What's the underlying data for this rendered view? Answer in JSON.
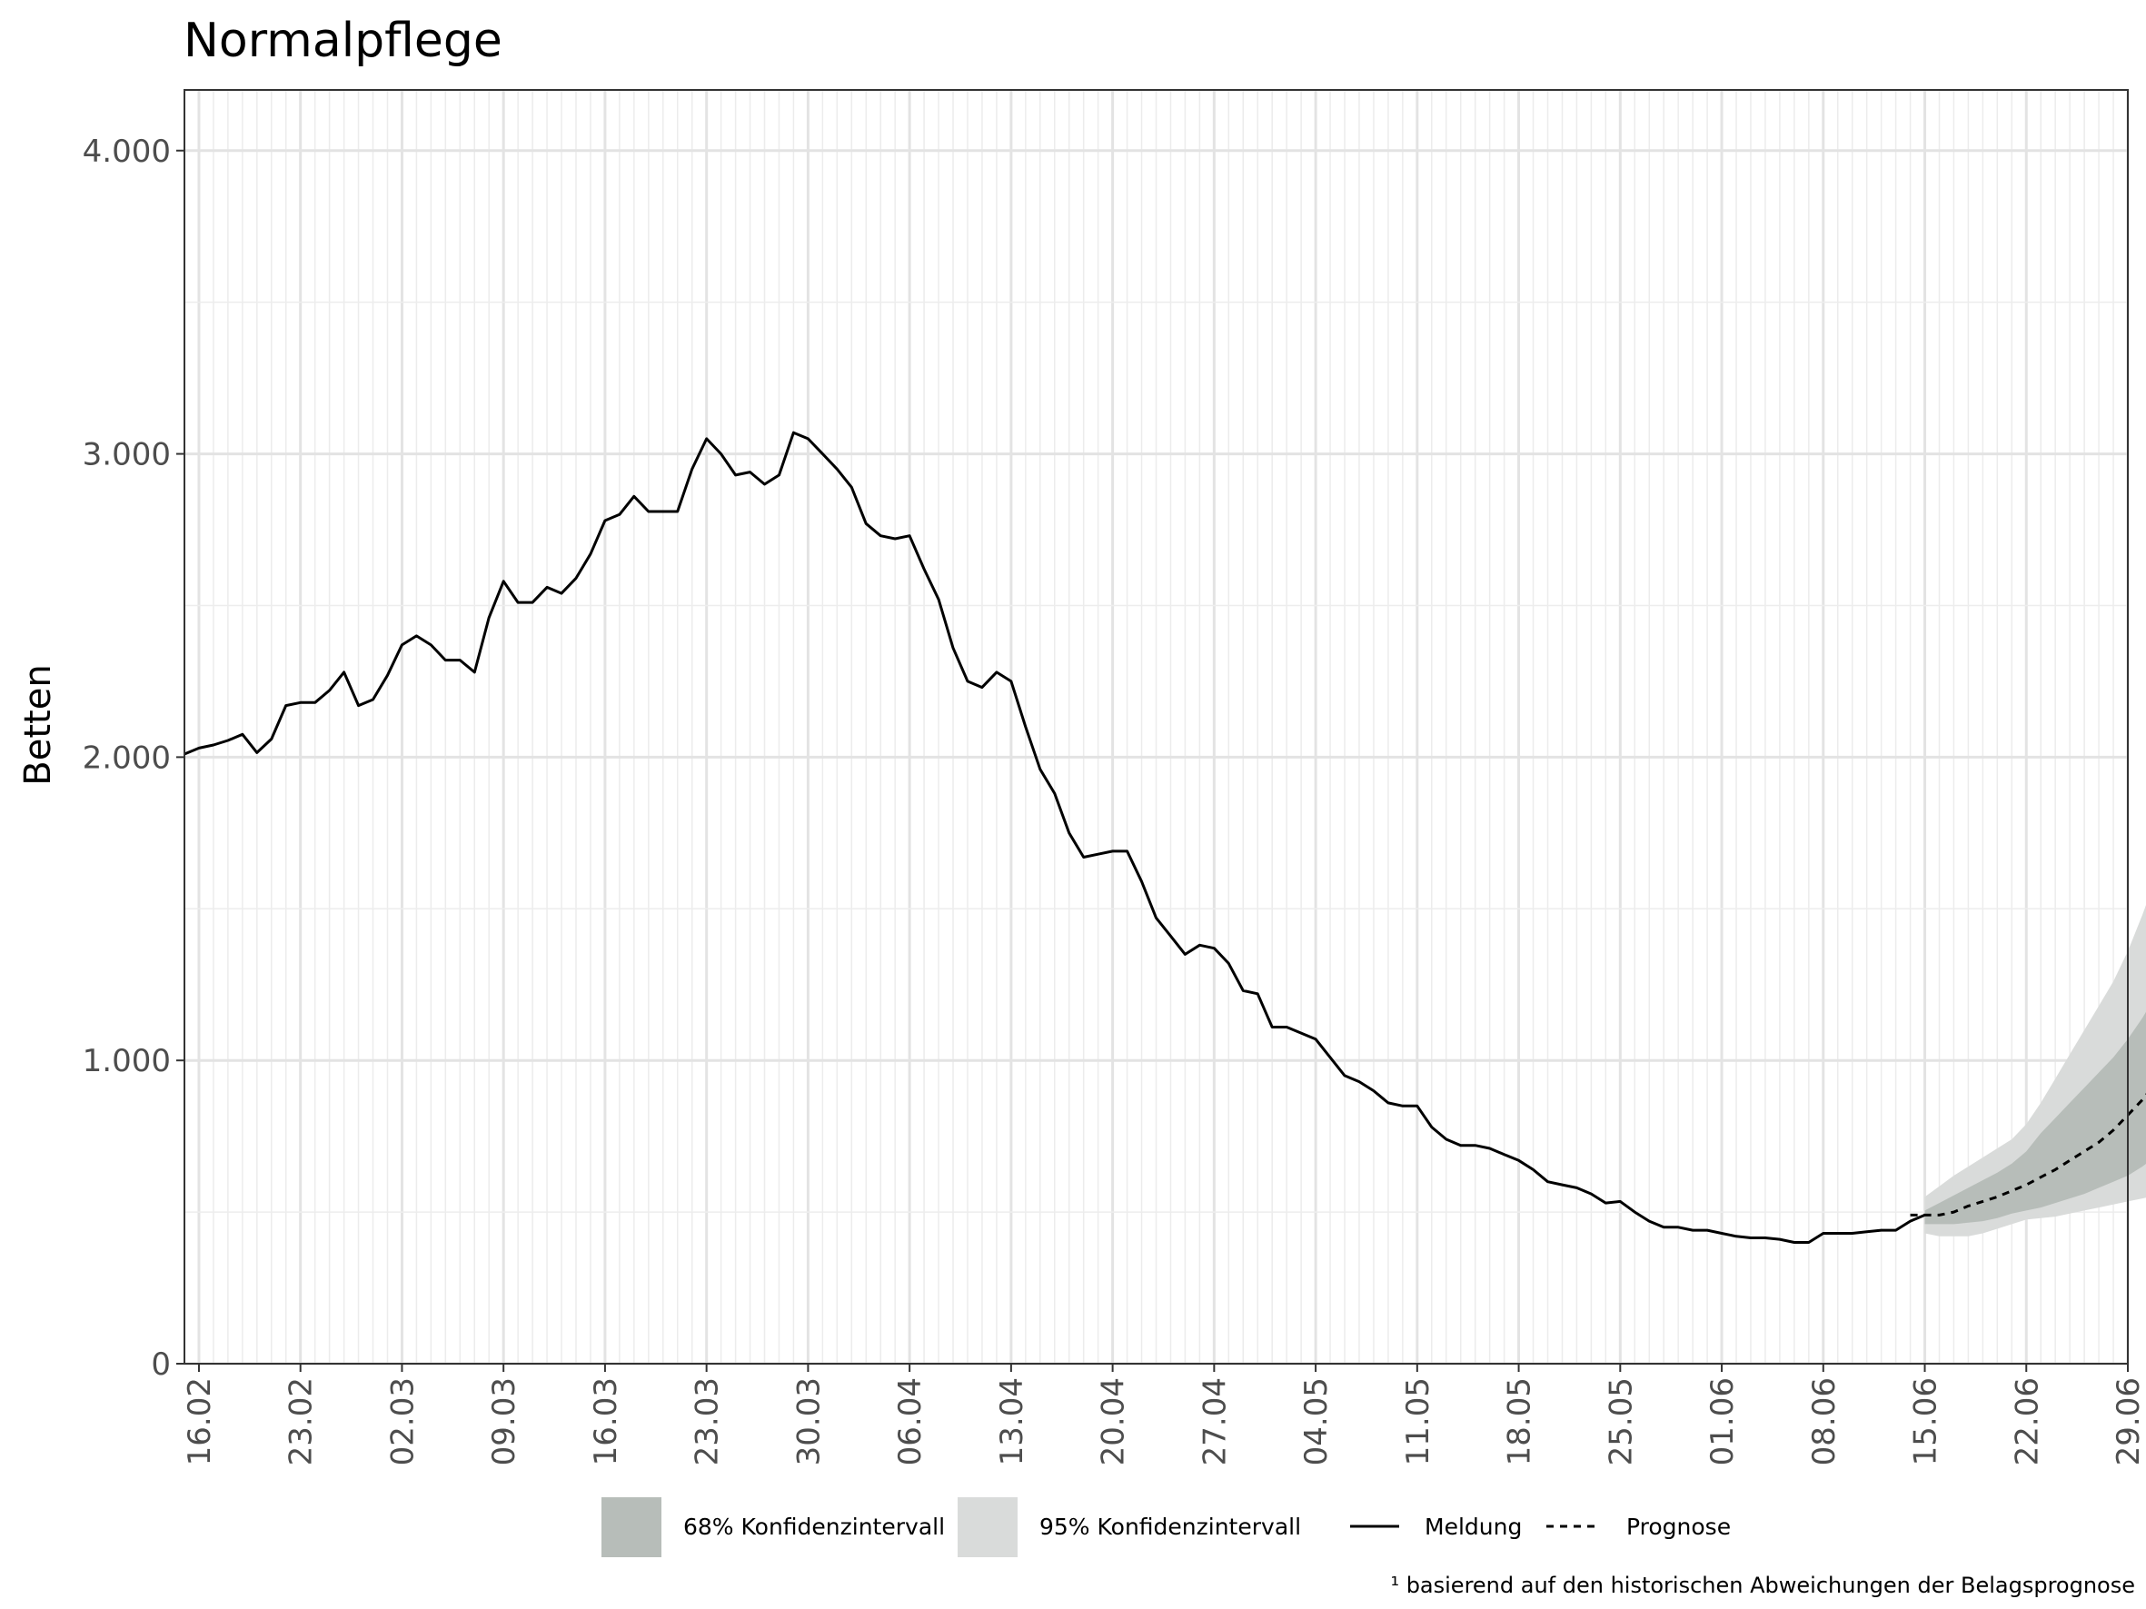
{
  "chart_data": {
    "type": "line",
    "title": "Normalpflege",
    "xlabel": "",
    "ylabel": "Betten",
    "ylim": [
      0,
      4200
    ],
    "y_ticks": [
      0,
      1000,
      2000,
      3000,
      4000
    ],
    "y_tick_labels": [
      "0",
      "1.000",
      "2.000",
      "3.000",
      "4.000"
    ],
    "x_range": [
      "2021-02-15",
      "2021-06-29"
    ],
    "x_ticks": [
      "2021-02-16",
      "2021-02-23",
      "2021-03-02",
      "2021-03-09",
      "2021-03-16",
      "2021-03-23",
      "2021-03-30",
      "2021-04-06",
      "2021-04-13",
      "2021-04-20",
      "2021-04-27",
      "2021-05-04",
      "2021-05-11",
      "2021-05-18",
      "2021-05-25",
      "2021-06-01",
      "2021-06-08",
      "2021-06-15",
      "2021-06-22",
      "2021-06-29"
    ],
    "x_tick_labels": [
      "16.02",
      "23.02",
      "02.03",
      "09.03",
      "16.03",
      "23.03",
      "30.03",
      "06.04",
      "13.04",
      "20.04",
      "27.04",
      "04.05",
      "11.05",
      "18.05",
      "25.05",
      "01.06",
      "08.06",
      "15.06",
      "22.06",
      "29.06"
    ],
    "grid": true,
    "legend_position": "bottom",
    "series": [
      {
        "name": "Meldung",
        "style": "solid",
        "color": "#000000",
        "start_date": "2021-02-15",
        "values": [
          2010,
          2030,
          2040,
          2055,
          2075,
          2015,
          2060,
          2170,
          2180,
          2180,
          2220,
          2280,
          2170,
          2190,
          2270,
          2370,
          2400,
          2370,
          2320,
          2320,
          2280,
          2460,
          2580,
          2510,
          2510,
          2560,
          2540,
          2590,
          2670,
          2780,
          2800,
          2860,
          2810,
          2810,
          2810,
          2950,
          3050,
          3000,
          2930,
          2940,
          2900,
          2930,
          3070,
          3050,
          3000,
          2950,
          2890,
          2770,
          2730,
          2720,
          2730,
          2620,
          2520,
          2360,
          2250,
          2230,
          2280,
          2250,
          2100,
          1960,
          1880,
          1750,
          1670,
          1680,
          1690,
          1690,
          1590,
          1470,
          1410,
          1350,
          1380,
          1370,
          1320,
          1230,
          1220,
          1110,
          1110,
          1090,
          1070,
          1010,
          950,
          930,
          900,
          860,
          850,
          850,
          780,
          740,
          720,
          720,
          710,
          690,
          670,
          640,
          600,
          590,
          580,
          560,
          530,
          535,
          500,
          470,
          450,
          450,
          440,
          440,
          430,
          420,
          415,
          415,
          410,
          400,
          400,
          430,
          430,
          430,
          435,
          440,
          440,
          470,
          490
        ]
      },
      {
        "name": "Prognose",
        "style": "dashed",
        "color": "#000000",
        "start_date": "2021-06-14",
        "values": [
          490,
          490,
          490,
          500,
          520,
          535,
          550,
          570,
          590,
          615,
          640,
          670,
          700,
          730,
          770,
          820,
          870,
          930
        ]
      }
    ],
    "bands": [
      {
        "name": "95% Konfidenzintervall",
        "color": "#d9dbda",
        "start_date": "2021-06-15",
        "lower": [
          430,
          420,
          420,
          420,
          430,
          445,
          460,
          475,
          480,
          485,
          495,
          505,
          515,
          525,
          535,
          545,
          555
        ],
        "upper": [
          550,
          585,
          620,
          650,
          680,
          710,
          740,
          790,
          860,
          940,
          1020,
          1100,
          1180,
          1260,
          1360,
          1480,
          1610
        ]
      },
      {
        "name": "68% Konfidenzintervall",
        "color": "#b7bdb9",
        "start_date": "2021-06-15",
        "lower": [
          460,
          460,
          460,
          465,
          470,
          480,
          495,
          505,
          515,
          530,
          545,
          560,
          580,
          600,
          620,
          650,
          685
        ],
        "upper": [
          505,
          530,
          555,
          580,
          605,
          630,
          660,
          700,
          760,
          810,
          860,
          910,
          960,
          1010,
          1070,
          1140,
          1220
        ]
      }
    ],
    "legend": [
      {
        "label": "68% Konfidenzintervall",
        "kind": "fill",
        "color": "#b7bdb9"
      },
      {
        "label": "95% Konfidenzintervall",
        "kind": "fill",
        "color": "#d9dbda"
      },
      {
        "label": "Meldung",
        "kind": "solid",
        "color": "#000000"
      },
      {
        "label": "Prognose",
        "kind": "dashed",
        "color": "#000000"
      }
    ],
    "footnote": "¹ basierend auf den historischen Abweichungen der Belagsprognose"
  }
}
